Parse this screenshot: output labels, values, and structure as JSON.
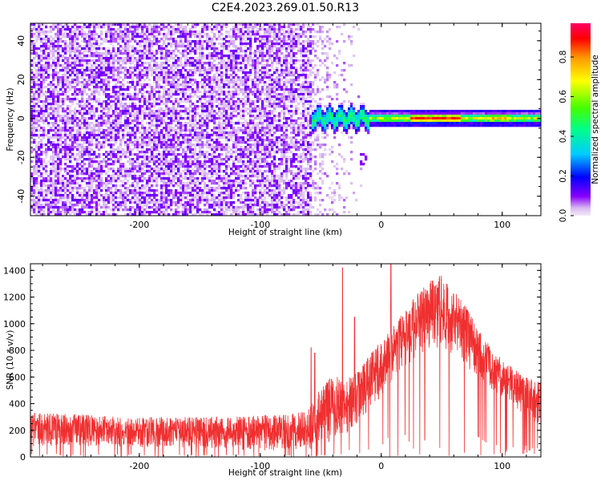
{
  "figure": {
    "title": "C2E4.2023.269.01.50.R13"
  },
  "chart_data": [
    {
      "type": "heatmap",
      "name": "spectrogram",
      "xlabel": "Height of straight line (km)",
      "ylabel": "Frequency (Hz)",
      "xlim": [
        -290,
        132
      ],
      "ylim": [
        -50,
        49
      ],
      "xticks": [
        -200,
        -100,
        0,
        100
      ],
      "yticks": [
        -40,
        -20,
        0,
        20,
        40
      ],
      "grid": false,
      "colorbar": {
        "label": "Normalized spectral amplitude",
        "range": [
          0,
          0.97
        ],
        "ticks": [
          0.0,
          0.2,
          0.4,
          0.6,
          0.8
        ],
        "colormap": [
          "#e8d0f0",
          "#8800ff",
          "#0000ff",
          "#00ccff",
          "#00ff88",
          "#44ff00",
          "#ffff00",
          "#ff9900",
          "#ff0000",
          "#ff0066"
        ]
      },
      "features": {
        "noise_region_x": [
          -290,
          -58
        ],
        "signal_ridge_x": [
          -58,
          132
        ],
        "signal_ridge_frequency_hz": 0,
        "peak_amplitude_x": [
          25,
          65
        ]
      }
    },
    {
      "type": "line",
      "name": "snr",
      "xlabel": "Height of straight line (km)",
      "ylabel": "SNR (10 * v/v)",
      "xlim": [
        -290,
        132
      ],
      "ylim": [
        0,
        1450
      ],
      "xticks": [
        -200,
        -100,
        0,
        100
      ],
      "yticks": [
        0,
        200,
        400,
        600,
        800,
        1000,
        1200,
        1400
      ],
      "grid": false,
      "series": [
        {
          "color": "#f03030",
          "envelope_x": [
            -290,
            -250,
            -200,
            -150,
            -100,
            -70,
            -60,
            -50,
            -40,
            -30,
            -20,
            -10,
            0,
            10,
            20,
            30,
            40,
            50,
            60,
            70,
            80,
            90,
            100,
            110,
            120,
            132
          ],
          "envelope_low": [
            80,
            75,
            70,
            60,
            50,
            40,
            40,
            60,
            120,
            150,
            250,
            350,
            450,
            580,
            680,
            760,
            820,
            820,
            760,
            680,
            600,
            520,
            430,
            360,
            300,
            220
          ],
          "envelope_high": [
            330,
            320,
            300,
            300,
            310,
            330,
            360,
            520,
            620,
            580,
            640,
            760,
            880,
            1000,
            1100,
            1230,
            1320,
            1370,
            1260,
            1130,
            960,
            830,
            730,
            660,
            600,
            560
          ],
          "spikes": [
            {
              "x": -32,
              "y": 1420
            },
            {
              "x": 8,
              "y": 1450
            },
            {
              "x": -58,
              "y": 820
            },
            {
              "x": -55,
              "y": 780
            },
            {
              "x": -22,
              "y": 1050
            }
          ]
        }
      ]
    }
  ]
}
